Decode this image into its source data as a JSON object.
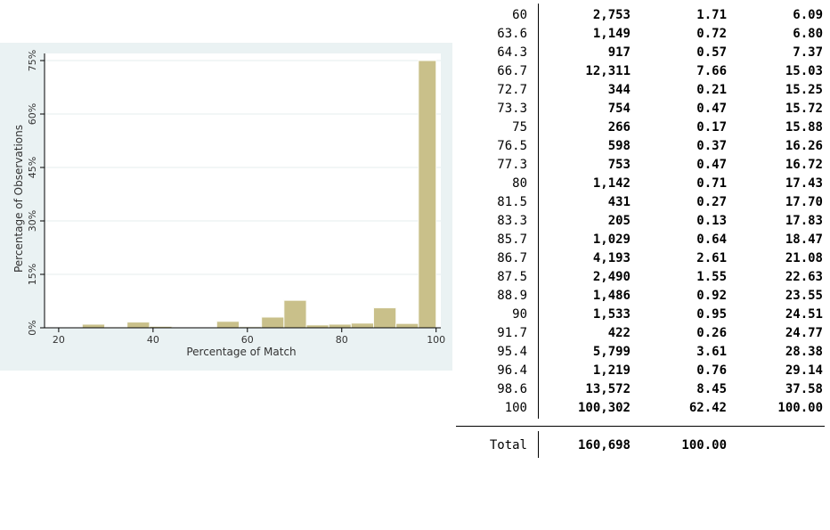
{
  "chart_data": {
    "type": "bar",
    "xlabel": "Percentage of Match",
    "ylabel": "Percentage of Observations",
    "xlim": [
      20,
      100
    ],
    "ylim": [
      0,
      75
    ],
    "x_ticks": [
      "20",
      "40",
      "60",
      "80",
      "100"
    ],
    "y_ticks": [
      "0%",
      "15%",
      "30%",
      "45%",
      "60%",
      "75%"
    ],
    "grid": true,
    "bar_color": "#c9c08a",
    "bins": [
      {
        "x0": 25,
        "x1": 29.75,
        "value": 1.0
      },
      {
        "x0": 29.75,
        "x1": 34.5,
        "value": 0.2
      },
      {
        "x0": 34.5,
        "x1": 39.25,
        "value": 1.6
      },
      {
        "x0": 39.25,
        "x1": 44,
        "value": 0.4
      },
      {
        "x0": 44,
        "x1": 48.75,
        "value": 0.1
      },
      {
        "x0": 48.75,
        "x1": 53.5,
        "value": 0.1
      },
      {
        "x0": 53.5,
        "x1": 58.25,
        "value": 1.8
      },
      {
        "x0": 58.25,
        "x1": 63,
        "value": 0.3
      },
      {
        "x0": 63,
        "x1": 67.75,
        "value": 3.0
      },
      {
        "x0": 67.75,
        "x1": 72.5,
        "value": 7.7
      },
      {
        "x0": 72.5,
        "x1": 77.25,
        "value": 0.8
      },
      {
        "x0": 77.25,
        "x1": 82,
        "value": 1.0
      },
      {
        "x0": 82,
        "x1": 86.75,
        "value": 1.3
      },
      {
        "x0": 86.75,
        "x1": 91.5,
        "value": 5.6
      },
      {
        "x0": 91.5,
        "x1": 96.25,
        "value": 1.2
      },
      {
        "x0": 96.25,
        "x1": 100,
        "value": 75.0
      }
    ]
  },
  "table": {
    "rows": [
      {
        "value": "60",
        "freq": "2,753",
        "percent": "1.71",
        "cum": "6.09"
      },
      {
        "value": "63.6",
        "freq": "1,149",
        "percent": "0.72",
        "cum": "6.80"
      },
      {
        "value": "64.3",
        "freq": "917",
        "percent": "0.57",
        "cum": "7.37"
      },
      {
        "value": "66.7",
        "freq": "12,311",
        "percent": "7.66",
        "cum": "15.03"
      },
      {
        "value": "72.7",
        "freq": "344",
        "percent": "0.21",
        "cum": "15.25"
      },
      {
        "value": "73.3",
        "freq": "754",
        "percent": "0.47",
        "cum": "15.72"
      },
      {
        "value": "75",
        "freq": "266",
        "percent": "0.17",
        "cum": "15.88"
      },
      {
        "value": "76.5",
        "freq": "598",
        "percent": "0.37",
        "cum": "16.26"
      },
      {
        "value": "77.3",
        "freq": "753",
        "percent": "0.47",
        "cum": "16.72"
      },
      {
        "value": "80",
        "freq": "1,142",
        "percent": "0.71",
        "cum": "17.43"
      },
      {
        "value": "81.5",
        "freq": "431",
        "percent": "0.27",
        "cum": "17.70"
      },
      {
        "value": "83.3",
        "freq": "205",
        "percent": "0.13",
        "cum": "17.83"
      },
      {
        "value": "85.7",
        "freq": "1,029",
        "percent": "0.64",
        "cum": "18.47"
      },
      {
        "value": "86.7",
        "freq": "4,193",
        "percent": "2.61",
        "cum": "21.08"
      },
      {
        "value": "87.5",
        "freq": "2,490",
        "percent": "1.55",
        "cum": "22.63"
      },
      {
        "value": "88.9",
        "freq": "1,486",
        "percent": "0.92",
        "cum": "23.55"
      },
      {
        "value": "90",
        "freq": "1,533",
        "percent": "0.95",
        "cum": "24.51"
      },
      {
        "value": "91.7",
        "freq": "422",
        "percent": "0.26",
        "cum": "24.77"
      },
      {
        "value": "95.4",
        "freq": "5,799",
        "percent": "3.61",
        "cum": "28.38"
      },
      {
        "value": "96.4",
        "freq": "1,219",
        "percent": "0.76",
        "cum": "29.14"
      },
      {
        "value": "98.6",
        "freq": "13,572",
        "percent": "8.45",
        "cum": "37.58"
      },
      {
        "value": "100",
        "freq": "100,302",
        "percent": "62.42",
        "cum": "100.00"
      }
    ],
    "total": {
      "label": "Total",
      "freq": "160,698",
      "percent": "100.00"
    }
  }
}
